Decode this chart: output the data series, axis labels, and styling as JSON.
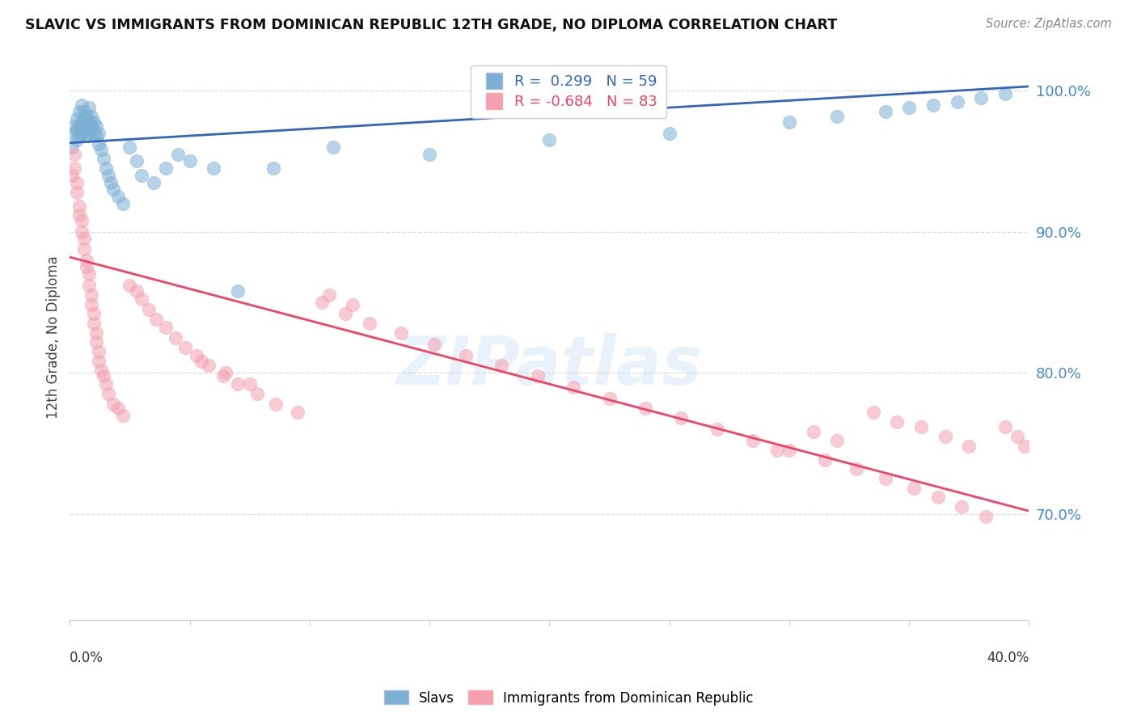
{
  "title": "SLAVIC VS IMMIGRANTS FROM DOMINICAN REPUBLIC 12TH GRADE, NO DIPLOMA CORRELATION CHART",
  "source": "Source: ZipAtlas.com",
  "ylabel": "12th Grade, No Diploma",
  "x_min": 0.0,
  "x_max": 0.4,
  "y_min": 0.625,
  "y_max": 1.025,
  "right_yticks": [
    0.7,
    0.8,
    0.9,
    1.0
  ],
  "right_yticklabels": [
    "70.0%",
    "80.0%",
    "90.0%",
    "100.0%"
  ],
  "slavs_R": 0.299,
  "slavs_N": 59,
  "dr_R": -0.684,
  "dr_N": 83,
  "slav_color": "#7BAFD4",
  "dr_color": "#F4A0B0",
  "slav_line_color": "#3366BB",
  "dr_line_color": "#EE4466",
  "legend_label_slav": "Slavs",
  "legend_label_dr": "Immigrants from Dominican Republic",
  "watermark": "ZIPatlas",
  "background_color": "#FFFFFF",
  "grid_color": "#DDDDDD",
  "slav_x": [
    0.001,
    0.002,
    0.002,
    0.003,
    0.003,
    0.003,
    0.004,
    0.004,
    0.004,
    0.005,
    0.005,
    0.005,
    0.006,
    0.006,
    0.006,
    0.007,
    0.007,
    0.007,
    0.008,
    0.008,
    0.008,
    0.009,
    0.009,
    0.01,
    0.01,
    0.011,
    0.011,
    0.012,
    0.012,
    0.013,
    0.014,
    0.015,
    0.016,
    0.017,
    0.018,
    0.02,
    0.022,
    0.025,
    0.028,
    0.03,
    0.035,
    0.04,
    0.045,
    0.05,
    0.06,
    0.07,
    0.085,
    0.11,
    0.15,
    0.2,
    0.25,
    0.3,
    0.32,
    0.34,
    0.35,
    0.36,
    0.37,
    0.38,
    0.39
  ],
  "slav_y": [
    0.96,
    0.97,
    0.975,
    0.965,
    0.972,
    0.98,
    0.968,
    0.975,
    0.985,
    0.97,
    0.978,
    0.99,
    0.972,
    0.98,
    0.985,
    0.968,
    0.975,
    0.982,
    0.97,
    0.978,
    0.988,
    0.975,
    0.982,
    0.97,
    0.978,
    0.968,
    0.975,
    0.962,
    0.97,
    0.958,
    0.952,
    0.945,
    0.94,
    0.935,
    0.93,
    0.925,
    0.92,
    0.96,
    0.95,
    0.94,
    0.935,
    0.945,
    0.955,
    0.95,
    0.945,
    0.858,
    0.945,
    0.96,
    0.955,
    0.965,
    0.97,
    0.978,
    0.982,
    0.985,
    0.988,
    0.99,
    0.992,
    0.995,
    0.998
  ],
  "dr_x": [
    0.001,
    0.002,
    0.002,
    0.003,
    0.003,
    0.004,
    0.004,
    0.005,
    0.005,
    0.006,
    0.006,
    0.007,
    0.007,
    0.008,
    0.008,
    0.009,
    0.009,
    0.01,
    0.01,
    0.011,
    0.011,
    0.012,
    0.012,
    0.013,
    0.014,
    0.015,
    0.016,
    0.018,
    0.02,
    0.022,
    0.025,
    0.028,
    0.03,
    0.033,
    0.036,
    0.04,
    0.044,
    0.048,
    0.053,
    0.058,
    0.064,
    0.07,
    0.078,
    0.086,
    0.095,
    0.105,
    0.115,
    0.125,
    0.138,
    0.152,
    0.165,
    0.18,
    0.195,
    0.21,
    0.225,
    0.24,
    0.255,
    0.27,
    0.285,
    0.3,
    0.315,
    0.328,
    0.34,
    0.352,
    0.362,
    0.372,
    0.382,
    0.39,
    0.395,
    0.398,
    0.355,
    0.365,
    0.375,
    0.335,
    0.345,
    0.31,
    0.32,
    0.295,
    0.108,
    0.118,
    0.055,
    0.065,
    0.075
  ],
  "dr_y": [
    0.94,
    0.955,
    0.945,
    0.935,
    0.928,
    0.918,
    0.912,
    0.908,
    0.9,
    0.895,
    0.888,
    0.88,
    0.875,
    0.87,
    0.862,
    0.855,
    0.848,
    0.842,
    0.835,
    0.828,
    0.822,
    0.815,
    0.808,
    0.802,
    0.798,
    0.792,
    0.785,
    0.778,
    0.775,
    0.77,
    0.862,
    0.858,
    0.852,
    0.845,
    0.838,
    0.832,
    0.825,
    0.818,
    0.812,
    0.805,
    0.798,
    0.792,
    0.785,
    0.778,
    0.772,
    0.85,
    0.842,
    0.835,
    0.828,
    0.82,
    0.812,
    0.805,
    0.798,
    0.79,
    0.782,
    0.775,
    0.768,
    0.76,
    0.752,
    0.745,
    0.738,
    0.732,
    0.725,
    0.718,
    0.712,
    0.705,
    0.698,
    0.762,
    0.755,
    0.748,
    0.762,
    0.755,
    0.748,
    0.772,
    0.765,
    0.758,
    0.752,
    0.745,
    0.855,
    0.848,
    0.808,
    0.8,
    0.792
  ]
}
